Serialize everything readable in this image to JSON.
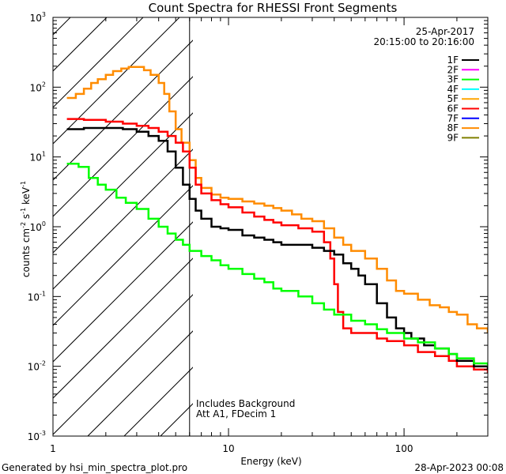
{
  "chart_data": {
    "type": "line",
    "title": "Count Spectra for RHESSI Front Segments",
    "xlabel": "Energy (keV)",
    "ylabel": "counts cm",
    "ylabel_exp1": "-2",
    "ylabel_s": " s",
    "ylabel_exp2": "-1",
    "ylabel_kev": " keV",
    "ylabel_exp3": "-1",
    "x_scale": "log",
    "y_scale": "log",
    "xlim": [
      1,
      300
    ],
    "ylim": [
      0.001,
      1000
    ],
    "x_ticks": [
      {
        "value": 10,
        "label": "10"
      },
      {
        "value": 100,
        "label": "100"
      }
    ],
    "x_tick_one_label": "1",
    "y_ticks": [
      {
        "value": 0.001,
        "base": "10",
        "exp": "-3"
      },
      {
        "value": 0.01,
        "base": "10",
        "exp": "-2"
      },
      {
        "value": 0.1,
        "base": "10",
        "exp": "-1"
      },
      {
        "value": 1,
        "base": "10",
        "exp": "0"
      },
      {
        "value": 10,
        "base": "10",
        "exp": "1"
      },
      {
        "value": 100,
        "base": "10",
        "exp": "2"
      },
      {
        "value": 1000,
        "base": "10",
        "exp": "3"
      }
    ],
    "attenuator_cutoff_kev": 6,
    "legend": {
      "date": "25-Apr-2017",
      "time_range": "20:15:00 to 20:16:00",
      "entries": [
        {
          "label": "1F",
          "color": "#000000"
        },
        {
          "label": "2F",
          "color": "#ff00ff"
        },
        {
          "label": "3F",
          "color": "#00ff00"
        },
        {
          "label": "4F",
          "color": "#00ffff"
        },
        {
          "label": "5F",
          "color": "#ffa500"
        },
        {
          "label": "6F",
          "color": "#ff0000"
        },
        {
          "label": "7F",
          "color": "#0000ff"
        },
        {
          "label": "8F",
          "color": "#ff8c00"
        },
        {
          "label": "9F",
          "color": "#808000"
        }
      ]
    },
    "annotation_line1": "Includes Background",
    "annotation_line2": "Att A1, FDecim  1",
    "series": [
      {
        "name": "8F",
        "color": "#ff8c00",
        "width": 2.5,
        "points": [
          [
            1.2,
            70
          ],
          [
            1.35,
            80
          ],
          [
            1.5,
            95
          ],
          [
            1.65,
            115
          ],
          [
            1.8,
            130
          ],
          [
            2.0,
            150
          ],
          [
            2.2,
            170
          ],
          [
            2.45,
            185
          ],
          [
            2.7,
            195
          ],
          [
            3.0,
            195
          ],
          [
            3.3,
            175
          ],
          [
            3.6,
            150
          ],
          [
            4.0,
            115
          ],
          [
            4.3,
            80
          ],
          [
            4.6,
            45
          ],
          [
            5.0,
            25
          ],
          [
            5.4,
            16
          ],
          [
            6.0,
            9
          ],
          [
            6.5,
            5
          ],
          [
            7.0,
            3.6
          ],
          [
            8.0,
            2.9
          ],
          [
            9.0,
            2.6
          ],
          [
            10,
            2.5
          ],
          [
            12,
            2.3
          ],
          [
            14,
            2.15
          ],
          [
            16,
            2.0
          ],
          [
            18,
            1.85
          ],
          [
            20,
            1.7
          ],
          [
            23,
            1.5
          ],
          [
            26,
            1.3
          ],
          [
            30,
            1.2
          ],
          [
            35,
            0.95
          ],
          [
            40,
            0.7
          ],
          [
            45,
            0.55
          ],
          [
            50,
            0.45
          ],
          [
            60,
            0.35
          ],
          [
            70,
            0.25
          ],
          [
            80,
            0.17
          ],
          [
            90,
            0.12
          ],
          [
            100,
            0.11
          ],
          [
            120,
            0.09
          ],
          [
            140,
            0.075
          ],
          [
            160,
            0.07
          ],
          [
            180,
            0.06
          ],
          [
            200,
            0.055
          ],
          [
            230,
            0.04
          ],
          [
            260,
            0.035
          ],
          [
            300,
            0.03
          ]
        ]
      },
      {
        "name": "6F",
        "color": "#ff0000",
        "width": 2.5,
        "points": [
          [
            1.2,
            35
          ],
          [
            1.5,
            34
          ],
          [
            2.0,
            32
          ],
          [
            2.5,
            30
          ],
          [
            3.0,
            28
          ],
          [
            3.5,
            26
          ],
          [
            4.0,
            23
          ],
          [
            4.5,
            20
          ],
          [
            5.0,
            16
          ],
          [
            5.5,
            12
          ],
          [
            6.0,
            7
          ],
          [
            6.5,
            4
          ],
          [
            7.0,
            3.0
          ],
          [
            8.0,
            2.4
          ],
          [
            9.0,
            2.1
          ],
          [
            10,
            1.9
          ],
          [
            12,
            1.6
          ],
          [
            14,
            1.4
          ],
          [
            16,
            1.25
          ],
          [
            18,
            1.15
          ],
          [
            20,
            1.05
          ],
          [
            25,
            0.95
          ],
          [
            30,
            0.85
          ],
          [
            35,
            0.6
          ],
          [
            38,
            0.35
          ],
          [
            40,
            0.15
          ],
          [
            42,
            0.06
          ],
          [
            45,
            0.035
          ],
          [
            50,
            0.03
          ],
          [
            60,
            0.03
          ],
          [
            70,
            0.025
          ],
          [
            80,
            0.023
          ],
          [
            100,
            0.02
          ],
          [
            120,
            0.016
          ],
          [
            150,
            0.014
          ],
          [
            180,
            0.012
          ],
          [
            200,
            0.01
          ],
          [
            250,
            0.009
          ],
          [
            300,
            0.008
          ]
        ]
      },
      {
        "name": "1F",
        "color": "#000000",
        "width": 2.5,
        "points": [
          [
            1.2,
            25
          ],
          [
            1.5,
            26
          ],
          [
            2.0,
            26
          ],
          [
            2.5,
            25
          ],
          [
            3.0,
            23
          ],
          [
            3.5,
            20
          ],
          [
            4.0,
            17
          ],
          [
            4.5,
            12
          ],
          [
            5.0,
            7
          ],
          [
            5.5,
            4
          ],
          [
            6.0,
            2.5
          ],
          [
            6.5,
            1.7
          ],
          [
            7.0,
            1.3
          ],
          [
            8.0,
            1.0
          ],
          [
            9.0,
            0.95
          ],
          [
            10,
            0.9
          ],
          [
            12,
            0.75
          ],
          [
            14,
            0.7
          ],
          [
            16,
            0.65
          ],
          [
            18,
            0.6
          ],
          [
            20,
            0.55
          ],
          [
            25,
            0.55
          ],
          [
            30,
            0.5
          ],
          [
            35,
            0.45
          ],
          [
            40,
            0.4
          ],
          [
            45,
            0.3
          ],
          [
            50,
            0.25
          ],
          [
            55,
            0.2
          ],
          [
            60,
            0.15
          ],
          [
            70,
            0.08
          ],
          [
            80,
            0.05
          ],
          [
            90,
            0.035
          ],
          [
            100,
            0.03
          ],
          [
            110,
            0.025
          ],
          [
            130,
            0.02
          ],
          [
            150,
            0.018
          ],
          [
            180,
            0.015
          ],
          [
            200,
            0.012
          ],
          [
            250,
            0.01
          ],
          [
            300,
            0.009
          ]
        ]
      },
      {
        "name": "3F",
        "color": "#00ff00",
        "width": 2.5,
        "points": [
          [
            1.2,
            8.0
          ],
          [
            1.4,
            7.2
          ],
          [
            1.6,
            5.0
          ],
          [
            1.8,
            4.0
          ],
          [
            2.0,
            3.4
          ],
          [
            2.3,
            2.6
          ],
          [
            2.6,
            2.2
          ],
          [
            3.0,
            1.8
          ],
          [
            3.5,
            1.3
          ],
          [
            4.0,
            1.0
          ],
          [
            4.5,
            0.8
          ],
          [
            5.0,
            0.65
          ],
          [
            5.5,
            0.55
          ],
          [
            6.0,
            0.45
          ],
          [
            7.0,
            0.38
          ],
          [
            8.0,
            0.33
          ],
          [
            9.0,
            0.28
          ],
          [
            10,
            0.25
          ],
          [
            12,
            0.21
          ],
          [
            14,
            0.18
          ],
          [
            16,
            0.16
          ],
          [
            18,
            0.13
          ],
          [
            20,
            0.12
          ],
          [
            25,
            0.1
          ],
          [
            30,
            0.08
          ],
          [
            35,
            0.065
          ],
          [
            40,
            0.055
          ],
          [
            50,
            0.045
          ],
          [
            60,
            0.04
          ],
          [
            70,
            0.034
          ],
          [
            80,
            0.03
          ],
          [
            100,
            0.025
          ],
          [
            120,
            0.022
          ],
          [
            150,
            0.018
          ],
          [
            180,
            0.015
          ],
          [
            200,
            0.013
          ],
          [
            250,
            0.011
          ],
          [
            300,
            0.01
          ]
        ]
      }
    ]
  }
}
